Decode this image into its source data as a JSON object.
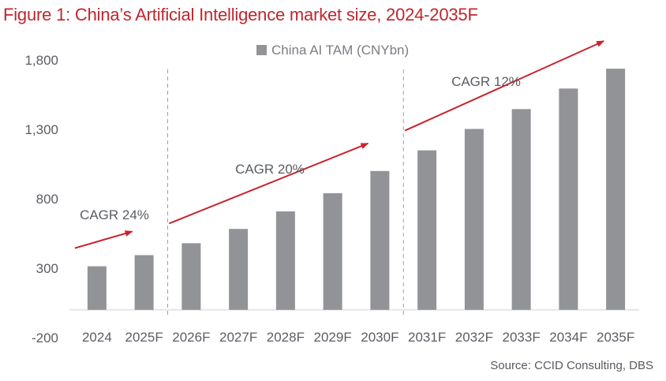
{
  "title": "Figure 1: China’s Artificial Intelligence market size, 2024-2035F",
  "source": "Source: CCID Consulting, DBS",
  "colors": {
    "bar": "#929396",
    "arrow": "#c8232b",
    "title": "#c0262d",
    "text": "#595d63",
    "axis": "#e6e6e6",
    "divider": "#a0a0a0"
  },
  "chart_data": {
    "type": "bar",
    "title": "Figure 1: China’s Artificial Intelligence market size, 2024-2035F",
    "xlabel": "",
    "ylabel": "",
    "categories": [
      "2024",
      "2025F",
      "2026F",
      "2027F",
      "2028F",
      "2029F",
      "2030F",
      "2031F",
      "2032F",
      "2033F",
      "2034F",
      "2035F"
    ],
    "series": [
      {
        "name": "China AI TAM (CNYbn)",
        "values": [
          314,
          394,
          480,
          583,
          709,
          840,
          1000,
          1149,
          1303,
          1446,
          1594,
          1737
        ]
      }
    ],
    "ylim": [
      -200,
      1800
    ],
    "yticks": [
      -200,
      300,
      800,
      1300,
      1800
    ],
    "ytick_labels": [
      "-200",
      "300",
      "800",
      "1,300",
      "1,800"
    ],
    "grid": false,
    "legend": {
      "position": "top-center",
      "entries": [
        "China AI TAM (CNYbn)"
      ]
    },
    "dividers_after": [
      "2025F",
      "2030F"
    ],
    "annotations": [
      {
        "text": "CAGR 24%",
        "from": "2024",
        "to": "2025F"
      },
      {
        "text": "CAGR 20%",
        "from": "2026F",
        "to": "2030F"
      },
      {
        "text": "CAGR 12%",
        "from": "2031F",
        "to": "2035F"
      }
    ]
  }
}
